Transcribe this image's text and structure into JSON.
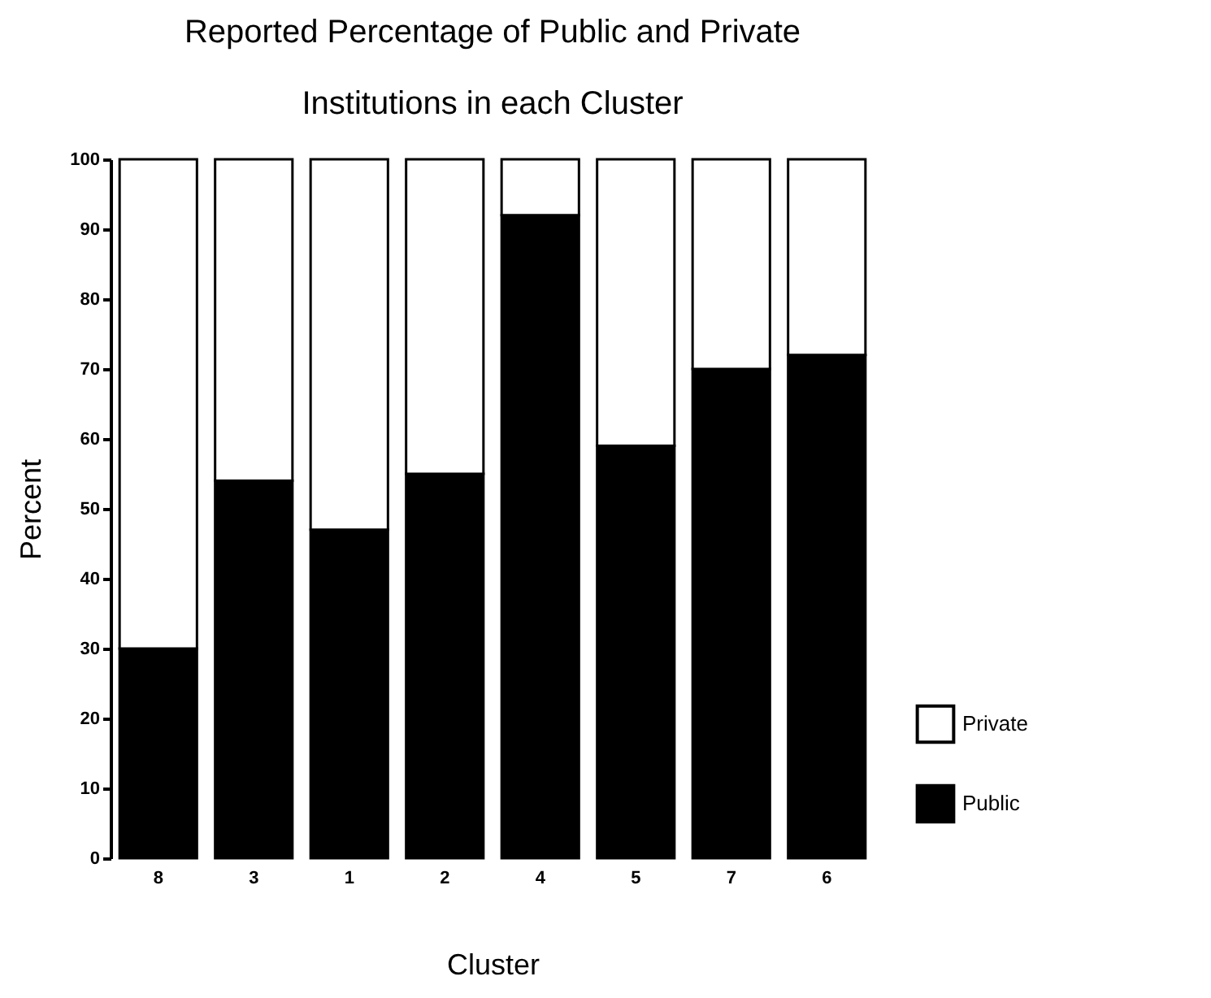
{
  "chart_data": {
    "type": "bar",
    "title": [
      "Reported Percentage of Public and Private",
      "Institutions in each Cluster"
    ],
    "xlabel": "Cluster",
    "ylabel": "Percent",
    "categories": [
      "8",
      "3",
      "1",
      "2",
      "4",
      "5",
      "7",
      "6"
    ],
    "stacked": true,
    "series": [
      {
        "name": "Public",
        "color": "#000000",
        "values": [
          30,
          54,
          47,
          55,
          92,
          59,
          70,
          72
        ]
      },
      {
        "name": "Private",
        "color": "#ffffff",
        "values": [
          70,
          46,
          53,
          45,
          8,
          41,
          30,
          28
        ]
      }
    ],
    "ylim": [
      0,
      100
    ],
    "yticks": [
      0,
      10,
      20,
      30,
      40,
      50,
      60,
      70,
      80,
      90,
      100
    ],
    "grid": false,
    "legend": "bottom right"
  }
}
